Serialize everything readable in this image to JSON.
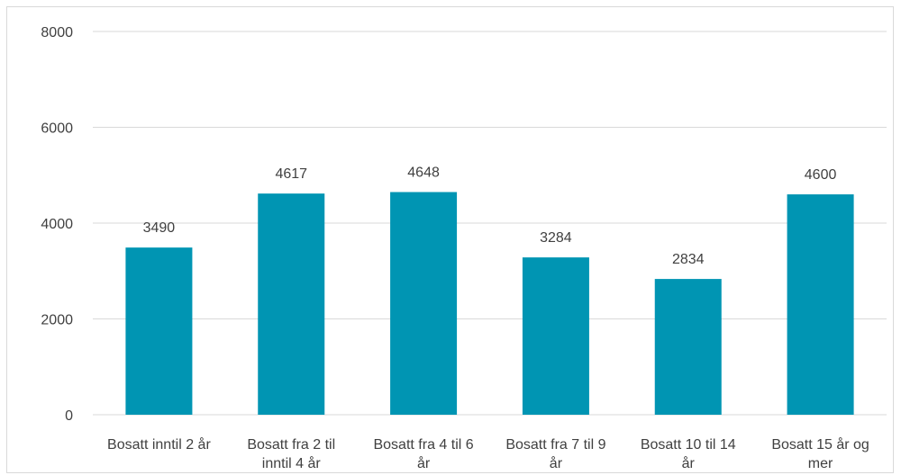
{
  "chart_data": {
    "type": "bar",
    "categories": [
      [
        "Bosatt inntil 2 år"
      ],
      [
        "Bosatt fra 2 til",
        "inntil 4 år"
      ],
      [
        "Bosatt fra 4 til 6",
        "år"
      ],
      [
        "Bosatt fra 7 til  9",
        "år"
      ],
      [
        "Bosatt 10 til 14",
        "år"
      ],
      [
        "Bosatt 15 år og",
        "mer"
      ]
    ],
    "values": [
      3490,
      4617,
      4648,
      3284,
      2834,
      4600
    ],
    "data_labels": [
      "3490",
      "4617",
      "4648",
      "3284",
      "2834",
      "4600"
    ],
    "ylim": [
      0,
      8000
    ],
    "yticks": [
      0,
      2000,
      4000,
      6000,
      8000
    ],
    "ytick_labels": [
      "0",
      "2000",
      "4000",
      "6000",
      "8000"
    ],
    "grid": true,
    "legend": "none",
    "bar_color": "#0095b3",
    "grid_color": "#d9d9d9",
    "title": "",
    "xlabel": "",
    "ylabel": ""
  }
}
